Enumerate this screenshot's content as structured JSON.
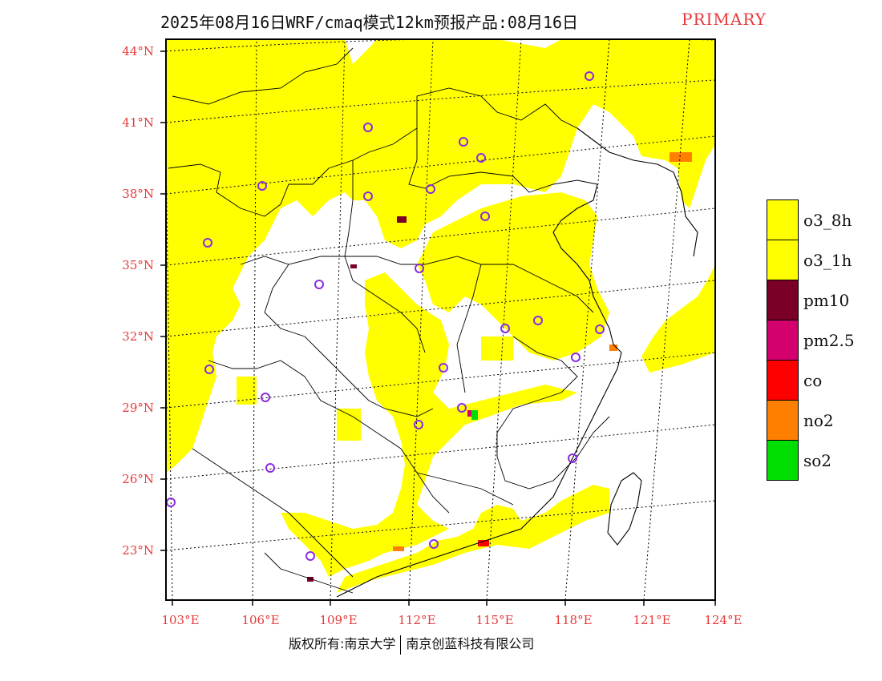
{
  "title": "2025年08月16日WRF/cmaq模式12km预报产品:08月16日",
  "pollutant_mode": "PRIMARY",
  "lat_labels": [
    "44°N",
    "41°N",
    "38°N",
    "35°N",
    "32°N",
    "29°N",
    "26°N",
    "23°N"
  ],
  "lon_labels": [
    "103°E",
    "106°E",
    "109°E",
    "112°E",
    "115°E",
    "118°E",
    "121°E",
    "124°E"
  ],
  "legend": [
    {
      "label": "o3_8h",
      "color": "#ffff00"
    },
    {
      "label": "o3_1h",
      "color": "#ffff00"
    },
    {
      "label": "pm10",
      "color": "#7a0028"
    },
    {
      "label": "pm2.5",
      "color": "#d4006e"
    },
    {
      "label": "co",
      "color": "#ff0000"
    },
    {
      "label": "no2",
      "color": "#ff7f00"
    },
    {
      "label": "so2",
      "color": "#00dd00"
    }
  ],
  "footer": {
    "copyright": "版权所有:南京大学",
    "company": "南京创蓝科技有限公司"
  },
  "colors": {
    "label_red": "#e8383a",
    "station_circle": "#8a2be2",
    "o3": "#ffff00"
  }
}
